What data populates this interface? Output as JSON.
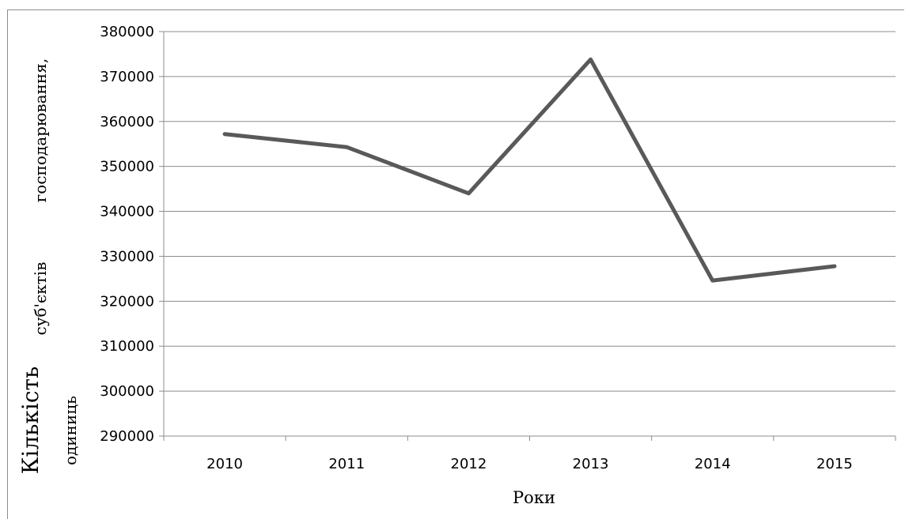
{
  "chart_data": {
    "type": "line",
    "categories": [
      "2010",
      "2011",
      "2012",
      "2013",
      "2014",
      "2015"
    ],
    "series": [
      {
        "values": [
          357200,
          354300,
          344000,
          373800,
          324600,
          327800
        ]
      }
    ],
    "ylim": [
      290000,
      380000
    ],
    "yticks": [
      "290000",
      "300000",
      "310000",
      "320000",
      "330000",
      "340000",
      "350000",
      "360000",
      "370000",
      "380000"
    ],
    "xlabel": "Роки",
    "ylabel_parts": [
      "господарювання,",
      "суб'єктів",
      "Кількість",
      "одиниць"
    ],
    "grid": true,
    "line_color": "#595959"
  }
}
